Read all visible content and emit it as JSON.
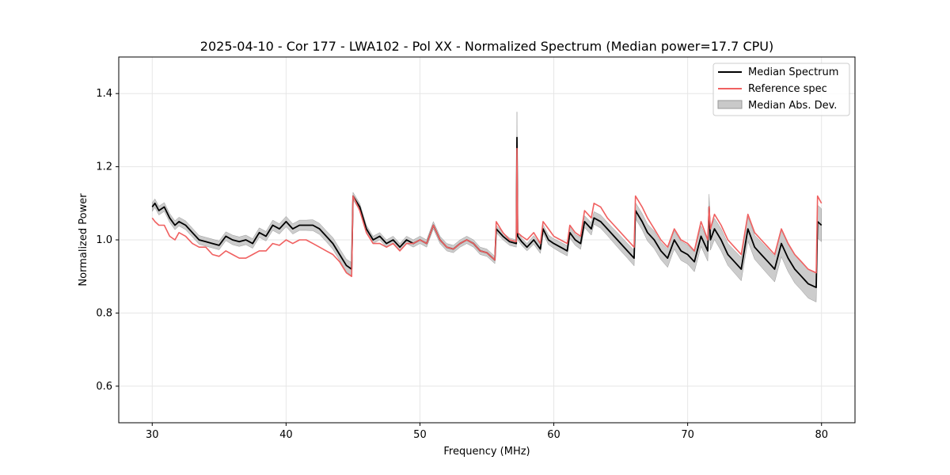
{
  "chart_data": {
    "type": "line",
    "title": "2025-04-10 - Cor 177 - LWA102 - Pol XX - Normalized Spectrum (Median power=17.7 CPU)",
    "xlabel": "Frequency (MHz)",
    "ylabel": "Normalized Power",
    "xlim": [
      27.5,
      82.5
    ],
    "ylim": [
      0.5,
      1.5
    ],
    "xticks": [
      30,
      40,
      50,
      60,
      70,
      80
    ],
    "yticks": [
      0.6,
      0.8,
      1.0,
      1.2,
      1.4
    ],
    "xtick_labels": [
      "30",
      "40",
      "50",
      "60",
      "70",
      "80"
    ],
    "ytick_labels": [
      "0.6",
      "0.8",
      "1.0",
      "1.2",
      "1.4"
    ],
    "grid": true,
    "legend_position": "top-right",
    "series": [
      {
        "name": "Median Spectrum",
        "color": "#000000",
        "x": [
          30.0,
          30.2,
          30.5,
          30.9,
          31.3,
          31.7,
          32.0,
          32.5,
          33.0,
          33.5,
          34.0,
          34.5,
          35.0,
          35.5,
          36.0,
          36.5,
          37.0,
          37.5,
          38.0,
          38.5,
          39.0,
          39.5,
          40.0,
          40.5,
          41.0,
          41.5,
          42.0,
          42.5,
          43.0,
          43.5,
          44.0,
          44.5,
          44.9,
          45.0,
          45.5,
          46.0,
          46.5,
          47.0,
          47.5,
          48.0,
          48.5,
          49.0,
          49.5,
          50.0,
          50.5,
          51.0,
          51.5,
          52.0,
          52.5,
          53.0,
          53.5,
          54.0,
          54.5,
          55.0,
          55.6,
          55.7,
          56.2,
          56.7,
          57.2,
          57.25,
          57.3,
          57.6,
          58.0,
          58.5,
          59.0,
          59.2,
          59.6,
          60.0,
          60.5,
          61.0,
          61.2,
          61.6,
          62.0,
          62.3,
          62.8,
          63.0,
          63.5,
          64.0,
          64.5,
          65.0,
          65.5,
          66.0,
          66.1,
          66.6,
          67.0,
          67.5,
          68.0,
          68.5,
          69.0,
          69.5,
          70.0,
          70.5,
          71.0,
          71.5,
          71.6,
          71.7,
          72.0,
          72.5,
          73.0,
          73.5,
          74.0,
          74.5,
          75.0,
          75.5,
          76.0,
          76.5,
          77.0,
          77.5,
          78.0,
          78.5,
          79.0,
          79.6,
          79.7,
          80.0
        ],
        "values": [
          1.09,
          1.1,
          1.08,
          1.09,
          1.06,
          1.04,
          1.05,
          1.04,
          1.02,
          1.0,
          0.995,
          0.99,
          0.985,
          1.01,
          1.0,
          0.995,
          1.0,
          0.99,
          1.02,
          1.01,
          1.04,
          1.03,
          1.05,
          1.03,
          1.04,
          1.04,
          1.04,
          1.03,
          1.01,
          0.99,
          0.96,
          0.93,
          0.92,
          1.12,
          1.09,
          1.03,
          1.0,
          1.01,
          0.99,
          1.0,
          0.98,
          1.0,
          0.99,
          1.0,
          0.99,
          1.04,
          1.0,
          0.98,
          0.975,
          0.99,
          1.0,
          0.99,
          0.97,
          0.965,
          0.945,
          1.03,
          1.01,
          0.995,
          0.99,
          1.28,
          1.01,
          0.995,
          0.98,
          1.0,
          0.975,
          1.03,
          1.0,
          0.99,
          0.98,
          0.97,
          1.02,
          1.0,
          0.99,
          1.05,
          1.03,
          1.06,
          1.05,
          1.03,
          1.01,
          0.99,
          0.97,
          0.95,
          1.08,
          1.05,
          1.02,
          1.0,
          0.97,
          0.95,
          1.0,
          0.97,
          0.96,
          0.94,
          1.01,
          0.97,
          1.09,
          1.0,
          1.03,
          1.0,
          0.96,
          0.94,
          0.92,
          1.03,
          0.98,
          0.96,
          0.94,
          0.92,
          0.99,
          0.95,
          0.92,
          0.9,
          0.88,
          0.87,
          1.05,
          1.04
        ]
      },
      {
        "name": "Reference spec",
        "color": "#f06060",
        "x": [
          30.0,
          30.2,
          30.5,
          30.9,
          31.3,
          31.7,
          32.0,
          32.5,
          33.0,
          33.5,
          34.0,
          34.5,
          35.0,
          35.5,
          36.0,
          36.5,
          37.0,
          37.5,
          38.0,
          38.5,
          39.0,
          39.5,
          40.0,
          40.5,
          41.0,
          41.5,
          42.0,
          42.5,
          43.0,
          43.5,
          44.0,
          44.5,
          44.9,
          45.0,
          45.5,
          46.0,
          46.5,
          47.0,
          47.5,
          48.0,
          48.5,
          49.0,
          49.5,
          50.0,
          50.5,
          51.0,
          51.5,
          52.0,
          52.5,
          53.0,
          53.5,
          54.0,
          54.5,
          55.0,
          55.6,
          55.7,
          56.2,
          56.7,
          57.2,
          57.25,
          57.3,
          57.6,
          58.0,
          58.5,
          59.0,
          59.2,
          59.6,
          60.0,
          60.5,
          61.0,
          61.2,
          61.6,
          62.0,
          62.3,
          62.8,
          63.0,
          63.5,
          64.0,
          64.5,
          65.0,
          65.5,
          66.0,
          66.1,
          66.6,
          67.0,
          67.5,
          68.0,
          68.5,
          69.0,
          69.5,
          70.0,
          70.5,
          71.0,
          71.5,
          71.6,
          71.7,
          72.0,
          72.5,
          73.0,
          73.5,
          74.0,
          74.5,
          75.0,
          75.5,
          76.0,
          76.5,
          77.0,
          77.5,
          78.0,
          78.5,
          79.0,
          79.6,
          79.7,
          80.0
        ],
        "values": [
          1.06,
          1.05,
          1.04,
          1.04,
          1.01,
          1.0,
          1.02,
          1.01,
          0.99,
          0.98,
          0.98,
          0.96,
          0.955,
          0.97,
          0.96,
          0.95,
          0.95,
          0.96,
          0.97,
          0.97,
          0.99,
          0.985,
          1.0,
          0.99,
          1.0,
          1.0,
          0.99,
          0.98,
          0.97,
          0.96,
          0.94,
          0.91,
          0.9,
          1.12,
          1.08,
          1.02,
          0.99,
          0.99,
          0.98,
          0.99,
          0.97,
          0.99,
          0.99,
          1.0,
          0.99,
          1.04,
          1.0,
          0.98,
          0.975,
          0.99,
          1.0,
          0.99,
          0.97,
          0.965,
          0.945,
          1.05,
          1.02,
          1.0,
          0.995,
          1.25,
          1.02,
          1.01,
          1.0,
          1.02,
          0.99,
          1.05,
          1.03,
          1.01,
          1.0,
          0.99,
          1.04,
          1.02,
          1.01,
          1.08,
          1.06,
          1.1,
          1.09,
          1.06,
          1.04,
          1.02,
          1.0,
          0.98,
          1.12,
          1.09,
          1.06,
          1.03,
          1.0,
          0.98,
          1.03,
          1.0,
          0.99,
          0.97,
          1.05,
          1.0,
          1.09,
          1.03,
          1.07,
          1.04,
          1.0,
          0.98,
          0.96,
          1.07,
          1.02,
          1.0,
          0.98,
          0.96,
          1.03,
          0.99,
          0.96,
          0.94,
          0.92,
          0.91,
          1.12,
          1.1
        ]
      }
    ],
    "band": {
      "name": "Median Abs. Dev.",
      "color": "#bbbbbb",
      "halfwidth": [
        0.012,
        0.012,
        0.012,
        0.012,
        0.012,
        0.012,
        0.012,
        0.012,
        0.012,
        0.012,
        0.012,
        0.012,
        0.012,
        0.012,
        0.013,
        0.013,
        0.013,
        0.013,
        0.013,
        0.013,
        0.014,
        0.014,
        0.014,
        0.014,
        0.014,
        0.014,
        0.015,
        0.015,
        0.015,
        0.016,
        0.016,
        0.017,
        0.018,
        0.01,
        0.01,
        0.01,
        0.01,
        0.01,
        0.01,
        0.01,
        0.01,
        0.01,
        0.01,
        0.01,
        0.01,
        0.01,
        0.01,
        0.01,
        0.01,
        0.01,
        0.01,
        0.01,
        0.01,
        0.01,
        0.01,
        0.01,
        0.01,
        0.01,
        0.01,
        0.07,
        0.01,
        0.01,
        0.01,
        0.012,
        0.012,
        0.012,
        0.013,
        0.013,
        0.014,
        0.014,
        0.015,
        0.015,
        0.016,
        0.016,
        0.017,
        0.017,
        0.018,
        0.018,
        0.019,
        0.02,
        0.02,
        0.021,
        0.022,
        0.022,
        0.023,
        0.024,
        0.024,
        0.025,
        0.025,
        0.026,
        0.026,
        0.027,
        0.028,
        0.028,
        0.035,
        0.028,
        0.029,
        0.03,
        0.03,
        0.031,
        0.032,
        0.033,
        0.033,
        0.034,
        0.035,
        0.035,
        0.036,
        0.037,
        0.038,
        0.038,
        0.039,
        0.04,
        0.045,
        0.045
      ]
    }
  }
}
